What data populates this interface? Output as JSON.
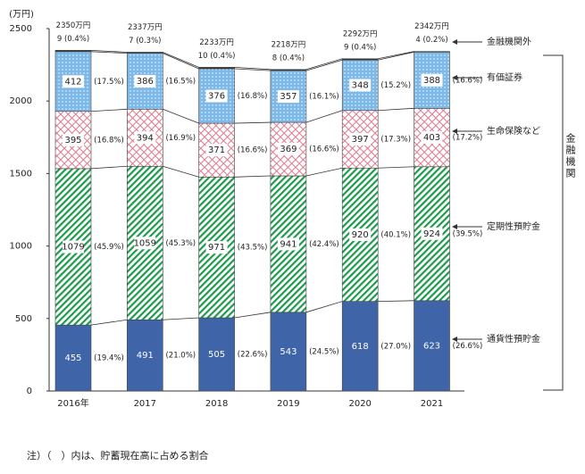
{
  "chart_data": {
    "type": "stacked_bar",
    "y_unit_label": "(万円)",
    "categories": [
      "2016年",
      "2017",
      "2018",
      "2019",
      "2020",
      "2021"
    ],
    "ylim": [
      0,
      2500
    ],
    "yticks": [
      0,
      500,
      1000,
      1500,
      2000,
      2500
    ],
    "series": [
      {
        "name": "通貨性預貯金",
        "color": "#3f65a8",
        "values": [
          455,
          491,
          505,
          543,
          618,
          623
        ],
        "share_labels": [
          "(19.4%)",
          "(21.0%)",
          "(22.6%)",
          "(24.5%)",
          "(27.0%)",
          "(26.6%)"
        ]
      },
      {
        "name": "定期性預貯金",
        "color": "#1e9a4c",
        "values": [
          1079,
          1059,
          971,
          941,
          920,
          924
        ],
        "share_labels": [
          "(45.9%)",
          "(45.3%)",
          "(43.5%)",
          "(42.4%)",
          "(40.1%)",
          "(39.5%)"
        ]
      },
      {
        "name": "生命保険など",
        "color": "#e0788e",
        "values": [
          395,
          394,
          371,
          369,
          397,
          403
        ],
        "share_labels": [
          "(16.8%)",
          "(16.9%)",
          "(16.6%)",
          "(16.6%)",
          "(17.3%)",
          "(17.2%)"
        ]
      },
      {
        "name": "有価証券",
        "color": "#7cb8e8",
        "values": [
          412,
          386,
          376,
          357,
          348,
          388
        ],
        "share_labels": [
          "(17.5%)",
          "(16.5%)",
          "(16.8%)",
          "(16.1%)",
          "(15.2%)",
          "(16.6%)"
        ]
      },
      {
        "name": "金融機関外",
        "color": "#333333",
        "values": [
          9,
          7,
          10,
          8,
          9,
          4
        ],
        "value_labels": [
          "9 (0.4%)",
          "7 (0.3%)",
          "10 (0.4%)",
          "8 (0.4%)",
          "9 (0.4%)",
          "4 (0.2%)"
        ]
      }
    ],
    "totals": [
      2350,
      2337,
      2233,
      2218,
      2292,
      2342
    ],
    "total_labels": [
      "2350万円",
      "2337万円",
      "2233万円",
      "2218万円",
      "2292万円",
      "2342万円"
    ],
    "bracket_label": "金融機関",
    "footnote": "注）（　）内は、貯蓄現在高に占める割合"
  }
}
